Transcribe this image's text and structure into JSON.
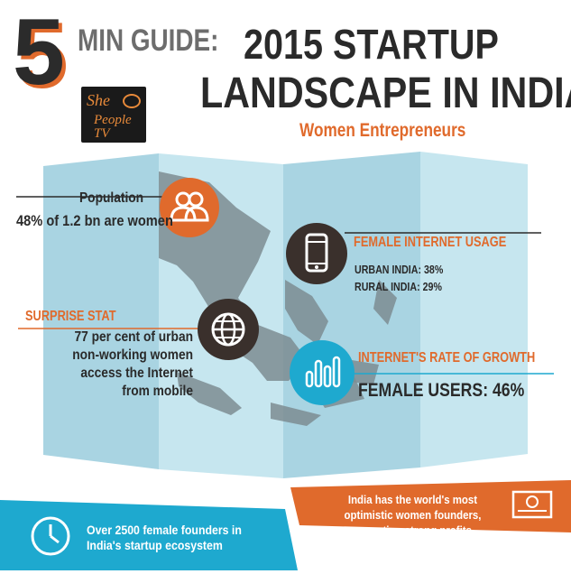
{
  "header": {
    "number": "5",
    "min_guide": "MIN GUIDE:",
    "title_line1": "2015 STARTUP",
    "title_line2": "LANDSCAPE IN INDIA",
    "subtitle": "Women Entrepreneurs"
  },
  "logo": {
    "text": "She the People TV"
  },
  "population": {
    "label": "Population",
    "value": "48% of 1.2 bn are women",
    "icon": "people-icon"
  },
  "internet_usage": {
    "label": "FEMALE INTERNET USAGE",
    "urban": "URBAN INDIA: 38%",
    "rural": "RURAL INDIA: 29%",
    "icon": "smartphone-icon"
  },
  "surprise": {
    "label": "SURPRISE STAT",
    "body": "77  per cent of urban non-working women access the Internet from mobile",
    "icon": "globe-icon"
  },
  "growth": {
    "label": "INTERNET'S RATE OF GROWTH",
    "value": "FEMALE USERS: 46%",
    "icon": "bar-chart-icon"
  },
  "banners": {
    "right": "India has the world's most optimistic women founders, expecting strong profits",
    "left": "Over 2500 female founders in India's startup ecosystem",
    "right_icon": "currency-note-icon",
    "left_icon": "clock-icon"
  },
  "colors": {
    "orange": "#e06a2c",
    "blue": "#1ea9cf",
    "dark": "#2b2b2b",
    "map": "#bfe0ea"
  }
}
